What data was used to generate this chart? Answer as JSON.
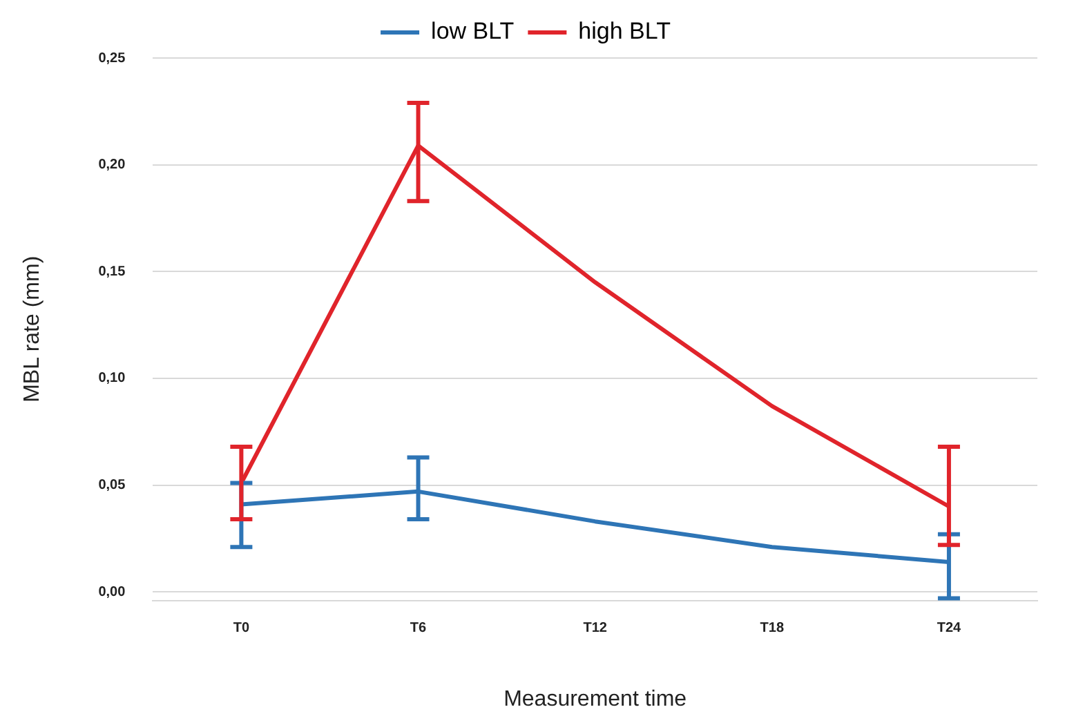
{
  "chart_data": {
    "type": "line",
    "xlabel": "Measurement time",
    "ylabel": "MBL rate (mm)",
    "categories": [
      "T0",
      "T6",
      "T12",
      "T18",
      "T24"
    ],
    "series": [
      {
        "name": "low BLT",
        "color": "#2e75b6",
        "values": [
          0.041,
          0.047,
          0.033,
          0.021,
          0.014
        ],
        "errors": [
          [
            0.021,
            0.051
          ],
          [
            0.034,
            0.063
          ],
          null,
          null,
          [
            -0.003,
            0.027
          ]
        ]
      },
      {
        "name": "high BLT",
        "color": "#e0242b",
        "values": [
          0.051,
          0.209,
          0.145,
          0.087,
          0.04
        ],
        "errors": [
          [
            0.034,
            0.068
          ],
          [
            0.183,
            0.229
          ],
          null,
          null,
          [
            0.022,
            0.068
          ]
        ]
      }
    ],
    "ylim": [
      -0.004,
      0.25
    ],
    "yticks": [
      {
        "value": 0,
        "label": "0,00"
      },
      {
        "value": 0.05,
        "label": "0,05"
      },
      {
        "value": 0.1,
        "label": "0,10"
      },
      {
        "value": 0.15,
        "label": "0,15"
      },
      {
        "value": 0.2,
        "label": "0,20"
      },
      {
        "value": 0.25,
        "label": "0,25"
      }
    ],
    "grid": "y",
    "legend": "top",
    "marker": "none",
    "line_style": "solid"
  }
}
